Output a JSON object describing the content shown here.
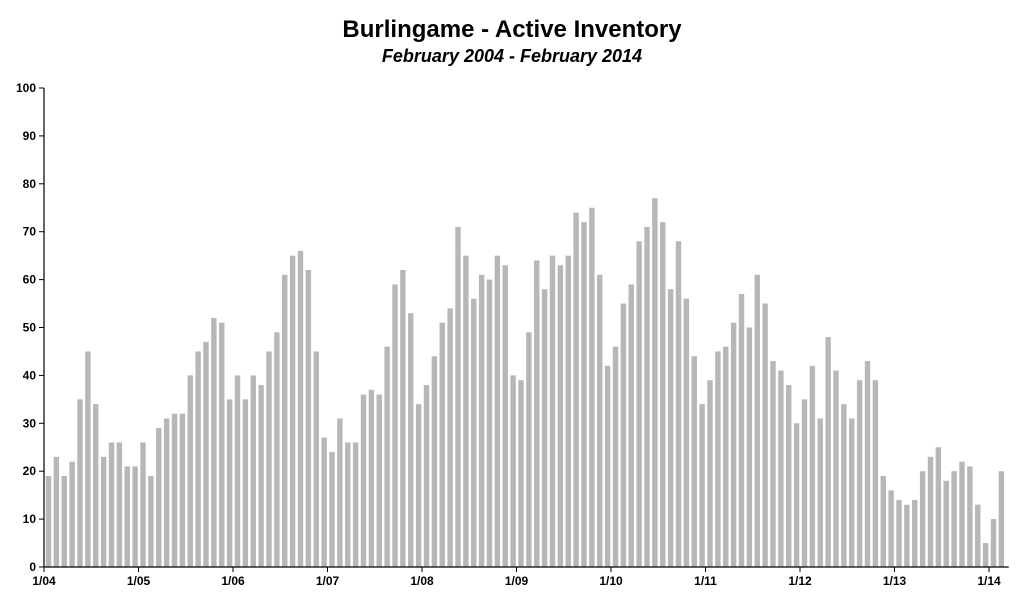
{
  "chart_data": {
    "type": "bar",
    "title": "Burlingame - Active Inventory",
    "subtitle": "February 2004 - February 2014",
    "xlabel": "",
    "ylabel": "",
    "ylim": [
      0,
      100
    ],
    "yticks": [
      0,
      10,
      20,
      30,
      40,
      50,
      60,
      70,
      80,
      90,
      100
    ],
    "xtick_labels": [
      "1/04",
      "1/05",
      "1/06",
      "1/07",
      "1/08",
      "1/09",
      "1/10",
      "1/11",
      "1/12",
      "1/13",
      "1/14"
    ],
    "bar_color": "#b7b7b7",
    "grid": false,
    "values": [
      19,
      23,
      19,
      22,
      35,
      45,
      34,
      23,
      26,
      26,
      21,
      21,
      26,
      19,
      29,
      31,
      32,
      32,
      40,
      45,
      47,
      52,
      51,
      35,
      40,
      35,
      40,
      38,
      45,
      49,
      61,
      65,
      66,
      62,
      45,
      27,
      24,
      31,
      26,
      26,
      36,
      37,
      36,
      46,
      59,
      62,
      53,
      34,
      38,
      44,
      51,
      54,
      71,
      65,
      56,
      61,
      60,
      65,
      63,
      40,
      39,
      49,
      64,
      58,
      65,
      63,
      65,
      74,
      72,
      75,
      61,
      42,
      46,
      55,
      59,
      68,
      71,
      77,
      72,
      58,
      68,
      56,
      44,
      34,
      39,
      45,
      46,
      51,
      57,
      50,
      61,
      55,
      43,
      41,
      38,
      30,
      35,
      42,
      31,
      48,
      41,
      34,
      31,
      39,
      43,
      39,
      19,
      16,
      14,
      13,
      14,
      20,
      23,
      25,
      18,
      20,
      22,
      21,
      13,
      5,
      10,
      20
    ]
  }
}
